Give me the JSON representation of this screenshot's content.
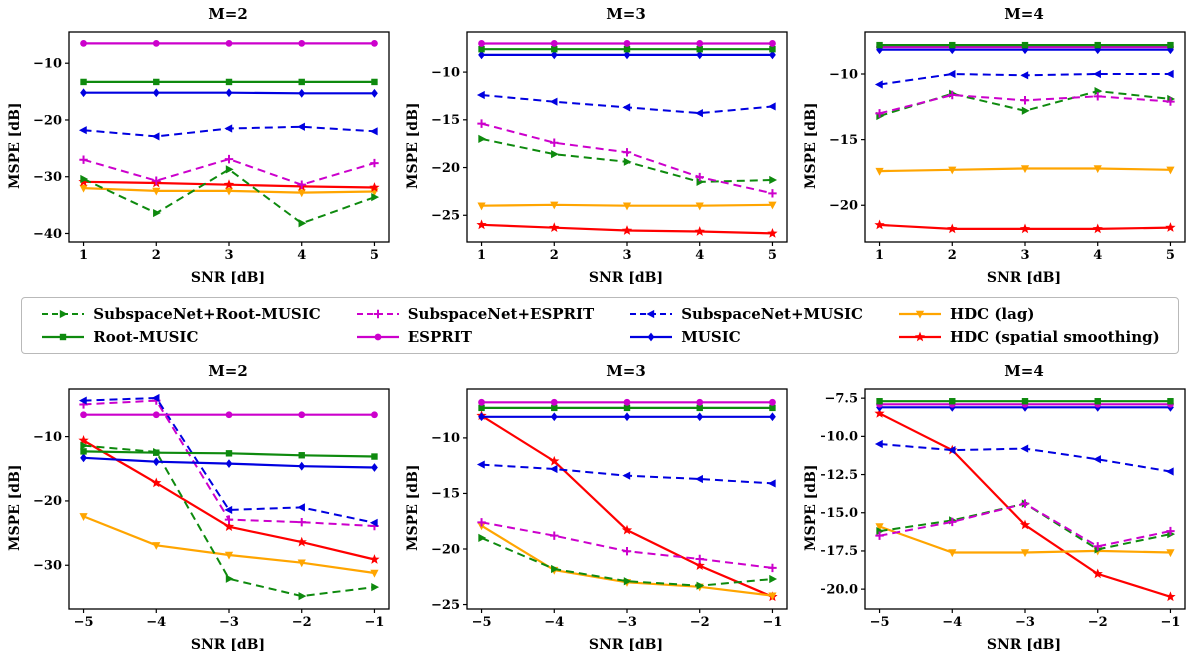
{
  "series_styles": {
    "ss_rm": {
      "color": "#0e8a0e",
      "dash": "8,5",
      "marker": "tri-right",
      "lw": 2
    },
    "rm": {
      "color": "#0e8a0e",
      "dash": "",
      "marker": "square",
      "lw": 2.2
    },
    "ss_esp": {
      "color": "#cc00cc",
      "dash": "8,5",
      "marker": "plus",
      "lw": 2
    },
    "esp": {
      "color": "#cc00cc",
      "dash": "",
      "marker": "circle",
      "lw": 2.2
    },
    "ss_mu": {
      "color": "#0000e0",
      "dash": "8,5",
      "marker": "tri-left",
      "lw": 2
    },
    "mu": {
      "color": "#0000e0",
      "dash": "",
      "marker": "diamond",
      "lw": 2.2
    },
    "hdc_lag": {
      "color": "#ffa500",
      "dash": "",
      "marker": "tri-down",
      "lw": 2.2
    },
    "hdc_ss": {
      "color": "#ff0000",
      "dash": "",
      "marker": "star",
      "lw": 2.2
    }
  },
  "legend": {
    "items": [
      {
        "label": "SubspaceNet+Root-MUSIC",
        "key": "ss_rm"
      },
      {
        "label": "SubspaceNet+ESPRIT",
        "key": "ss_esp"
      },
      {
        "label": "SubspaceNet+MUSIC",
        "key": "ss_mu"
      },
      {
        "label": "HDC (lag)",
        "key": "hdc_lag"
      },
      {
        "label": "Root-MUSIC",
        "key": "rm"
      },
      {
        "label": "ESPRIT",
        "key": "esp"
      },
      {
        "label": "MUSIC",
        "key": "mu"
      },
      {
        "label": "HDC (spatial smoothing)",
        "key": "hdc_ss"
      }
    ]
  },
  "chart_data": [
    {
      "type": "line",
      "title": "M=2",
      "xlabel": "SNR [dB]",
      "ylabel": "MSPE [dB]",
      "x": [
        1,
        2,
        3,
        4,
        5
      ],
      "xlim": [
        0.8,
        5.2
      ],
      "ylim": [
        -41.5,
        -4.5
      ],
      "xticks": [
        1,
        2,
        3,
        4,
        5
      ],
      "xtick_labels": [
        "1",
        "2",
        "3",
        "4",
        "5"
      ],
      "yticks": [
        -10,
        -20,
        -30,
        -40
      ],
      "ytick_labels": [
        "−10",
        "−20",
        "−30",
        "−40"
      ],
      "series": [
        {
          "name": "HDC (lag)",
          "key": "hdc_lag",
          "values": [
            -32.0,
            -32.5,
            -32.5,
            -32.8,
            -32.6
          ]
        },
        {
          "name": "HDC (spatial smoothing)",
          "key": "hdc_ss",
          "values": [
            -30.9,
            -31.1,
            -31.4,
            -31.7,
            -31.9
          ]
        },
        {
          "name": "SubspaceNet+Root-MUSIC",
          "key": "ss_rm",
          "values": [
            -30.4,
            -36.4,
            -28.7,
            -38.2,
            -33.6
          ]
        },
        {
          "name": "SubspaceNet+ESPRIT",
          "key": "ss_esp",
          "values": [
            -27.0,
            -30.7,
            -26.9,
            -31.4,
            -27.6
          ]
        },
        {
          "name": "SubspaceNet+MUSIC",
          "key": "ss_mu",
          "values": [
            -21.8,
            -22.9,
            -21.5,
            -21.2,
            -22.0
          ]
        },
        {
          "name": "MUSIC",
          "key": "mu",
          "values": [
            -15.2,
            -15.2,
            -15.2,
            -15.3,
            -15.3
          ]
        },
        {
          "name": "Root-MUSIC",
          "key": "rm",
          "values": [
            -13.3,
            -13.3,
            -13.3,
            -13.3,
            -13.3
          ]
        },
        {
          "name": "ESPRIT",
          "key": "esp",
          "values": [
            -6.5,
            -6.5,
            -6.5,
            -6.5,
            -6.5
          ]
        }
      ]
    },
    {
      "type": "line",
      "title": "M=3",
      "xlabel": "SNR [dB]",
      "ylabel": "MSPE [dB]",
      "x": [
        1,
        2,
        3,
        4,
        5
      ],
      "xlim": [
        0.8,
        5.2
      ],
      "ylim": [
        -27.8,
        -5.8
      ],
      "xticks": [
        1,
        2,
        3,
        4,
        5
      ],
      "xtick_labels": [
        "1",
        "2",
        "3",
        "4",
        "5"
      ],
      "yticks": [
        -10,
        -15,
        -20,
        -25
      ],
      "ytick_labels": [
        "−10",
        "−15",
        "−20",
        "−25"
      ],
      "series": [
        {
          "name": "HDC (spatial smoothing)",
          "key": "hdc_ss",
          "values": [
            -26.0,
            -26.3,
            -26.6,
            -26.7,
            -26.9
          ]
        },
        {
          "name": "HDC (lag)",
          "key": "hdc_lag",
          "values": [
            -24.0,
            -23.9,
            -24.0,
            -24.0,
            -23.9
          ]
        },
        {
          "name": "SubspaceNet+Root-MUSIC",
          "key": "ss_rm",
          "values": [
            -17.0,
            -18.6,
            -19.4,
            -21.5,
            -21.3
          ]
        },
        {
          "name": "SubspaceNet+ESPRIT",
          "key": "ss_esp",
          "values": [
            -15.4,
            -17.4,
            -18.4,
            -21.0,
            -22.7
          ]
        },
        {
          "name": "SubspaceNet+MUSIC",
          "key": "ss_mu",
          "values": [
            -12.4,
            -13.1,
            -13.7,
            -14.3,
            -13.6
          ]
        },
        {
          "name": "MUSIC",
          "key": "mu",
          "values": [
            -8.2,
            -8.2,
            -8.2,
            -8.2,
            -8.2
          ]
        },
        {
          "name": "Root-MUSIC",
          "key": "rm",
          "values": [
            -7.6,
            -7.6,
            -7.6,
            -7.6,
            -7.6
          ]
        },
        {
          "name": "ESPRIT",
          "key": "esp",
          "values": [
            -7.0,
            -7.0,
            -7.0,
            -7.0,
            -7.0
          ]
        }
      ]
    },
    {
      "type": "line",
      "title": "M=4",
      "xlabel": "SNR [dB]",
      "ylabel": "MSPE [dB]",
      "x": [
        1,
        2,
        3,
        4,
        5
      ],
      "xlim": [
        0.8,
        5.2
      ],
      "ylim": [
        -22.8,
        -6.8
      ],
      "xticks": [
        1,
        2,
        3,
        4,
        5
      ],
      "xtick_labels": [
        "1",
        "2",
        "3",
        "4",
        "5"
      ],
      "yticks": [
        -10,
        -15,
        -20
      ],
      "ytick_labels": [
        "−10",
        "−15",
        "−20"
      ],
      "series": [
        {
          "name": "HDC (spatial smoothing)",
          "key": "hdc_ss",
          "values": [
            -21.5,
            -21.8,
            -21.8,
            -21.8,
            -21.7
          ]
        },
        {
          "name": "HDC (lag)",
          "key": "hdc_lag",
          "values": [
            -17.4,
            -17.3,
            -17.2,
            -17.2,
            -17.3
          ]
        },
        {
          "name": "SubspaceNet+Root-MUSIC",
          "key": "ss_rm",
          "values": [
            -13.2,
            -11.5,
            -12.8,
            -11.3,
            -11.9
          ]
        },
        {
          "name": "SubspaceNet+ESPRIT",
          "key": "ss_esp",
          "values": [
            -13.0,
            -11.6,
            -12.0,
            -11.7,
            -12.1
          ]
        },
        {
          "name": "SubspaceNet+MUSIC",
          "key": "ss_mu",
          "values": [
            -10.8,
            -10.0,
            -10.1,
            -10.0,
            -10.0
          ]
        },
        {
          "name": "ESPRIT",
          "key": "esp",
          "values": [
            -7.95,
            -7.95,
            -7.95,
            -7.95,
            -7.95
          ]
        },
        {
          "name": "MUSIC",
          "key": "mu",
          "values": [
            -8.15,
            -8.15,
            -8.15,
            -8.15,
            -8.15
          ]
        },
        {
          "name": "Root-MUSIC",
          "key": "rm",
          "values": [
            -7.8,
            -7.8,
            -7.8,
            -7.8,
            -7.8
          ]
        }
      ]
    },
    {
      "type": "line",
      "title": "M=2",
      "xlabel": "SNR [dB]",
      "ylabel": "MSPE [dB]",
      "x": [
        -5,
        -4,
        -3,
        -2,
        -1
      ],
      "xlim": [
        -5.2,
        -0.8
      ],
      "ylim": [
        -36.8,
        -2.6
      ],
      "xticks": [
        -5,
        -4,
        -3,
        -2,
        -1
      ],
      "xtick_labels": [
        "−5",
        "−4",
        "−3",
        "−2",
        "−1"
      ],
      "yticks": [
        -10,
        -20,
        -30
      ],
      "ytick_labels": [
        "−10",
        "−20",
        "−30"
      ],
      "series": [
        {
          "name": "HDC (lag)",
          "key": "hdc_lag",
          "values": [
            -22.4,
            -26.9,
            -28.4,
            -29.6,
            -31.2
          ]
        },
        {
          "name": "HDC (spatial smoothing)",
          "key": "hdc_ss",
          "values": [
            -10.6,
            -17.2,
            -24.0,
            -26.4,
            -29.1
          ]
        },
        {
          "name": "SubspaceNet+Root-MUSIC",
          "key": "ss_rm",
          "values": [
            -11.4,
            -12.4,
            -32.1,
            -34.8,
            -33.4
          ]
        },
        {
          "name": "SubspaceNet+ESPRIT",
          "key": "ss_esp",
          "values": [
            -5.0,
            -4.4,
            -22.9,
            -23.3,
            -23.9
          ]
        },
        {
          "name": "SubspaceNet+MUSIC",
          "key": "ss_mu",
          "values": [
            -4.4,
            -4.0,
            -21.4,
            -21.0,
            -23.4
          ]
        },
        {
          "name": "MUSIC",
          "key": "mu",
          "values": [
            -13.3,
            -13.9,
            -14.2,
            -14.6,
            -14.8
          ]
        },
        {
          "name": "Root-MUSIC",
          "key": "rm",
          "values": [
            -12.3,
            -12.5,
            -12.6,
            -12.9,
            -13.1
          ]
        },
        {
          "name": "ESPRIT",
          "key": "esp",
          "values": [
            -6.6,
            -6.6,
            -6.6,
            -6.6,
            -6.6
          ]
        }
      ]
    },
    {
      "type": "line",
      "title": "M=3",
      "xlabel": "SNR [dB]",
      "ylabel": "MSPE [dB]",
      "x": [
        -5,
        -4,
        -3,
        -2,
        -1
      ],
      "xlim": [
        -5.2,
        -0.8
      ],
      "ylim": [
        -25.4,
        -5.6
      ],
      "xticks": [
        -5,
        -4,
        -3,
        -2,
        -1
      ],
      "xtick_labels": [
        "−5",
        "−4",
        "−3",
        "−2",
        "−1"
      ],
      "yticks": [
        -10,
        -15,
        -20,
        -25
      ],
      "ytick_labels": [
        "−10",
        "−15",
        "−20",
        "−25"
      ],
      "series": [
        {
          "name": "HDC (spatial smoothing)",
          "key": "hdc_ss",
          "values": [
            -8.0,
            -12.1,
            -18.3,
            -21.5,
            -24.3
          ]
        },
        {
          "name": "HDC (lag)",
          "key": "hdc_lag",
          "values": [
            -17.9,
            -21.9,
            -23.0,
            -23.4,
            -24.2
          ]
        },
        {
          "name": "SubspaceNet+Root-MUSIC",
          "key": "ss_rm",
          "values": [
            -19.0,
            -21.8,
            -22.9,
            -23.3,
            -22.7
          ]
        },
        {
          "name": "SubspaceNet+ESPRIT",
          "key": "ss_esp",
          "values": [
            -17.6,
            -18.8,
            -20.2,
            -20.9,
            -21.7
          ]
        },
        {
          "name": "SubspaceNet+MUSIC",
          "key": "ss_mu",
          "values": [
            -12.4,
            -12.8,
            -13.4,
            -13.7,
            -14.1
          ]
        },
        {
          "name": "MUSIC",
          "key": "mu",
          "values": [
            -8.1,
            -8.1,
            -8.1,
            -8.1,
            -8.1
          ]
        },
        {
          "name": "Root-MUSIC",
          "key": "rm",
          "values": [
            -7.3,
            -7.3,
            -7.3,
            -7.3,
            -7.3
          ]
        },
        {
          "name": "ESPRIT",
          "key": "esp",
          "values": [
            -6.8,
            -6.8,
            -6.8,
            -6.8,
            -6.8
          ]
        }
      ]
    },
    {
      "type": "line",
      "title": "M=4",
      "xlabel": "SNR [dB]",
      "ylabel": "MSPE [dB]",
      "x": [
        -5,
        -4,
        -3,
        -2,
        -1
      ],
      "xlim": [
        -5.2,
        -0.8
      ],
      "ylim": [
        -21.3,
        -6.9
      ],
      "xticks": [
        -5,
        -4,
        -3,
        -2,
        -1
      ],
      "xtick_labels": [
        "−5",
        "−4",
        "−3",
        "−2",
        "−1"
      ],
      "yticks": [
        -7.5,
        -10,
        -12.5,
        -15,
        -17.5,
        -20
      ],
      "ytick_labels": [
        "−7.5",
        "−10.0",
        "−12.5",
        "−15.0",
        "−17.5",
        "−20.0"
      ],
      "series": [
        {
          "name": "HDC (spatial smoothing)",
          "key": "hdc_ss",
          "values": [
            -8.5,
            -10.9,
            -15.8,
            -19.0,
            -20.5
          ]
        },
        {
          "name": "HDC (lag)",
          "key": "hdc_lag",
          "values": [
            -15.9,
            -17.6,
            -17.6,
            -17.5,
            -17.6
          ]
        },
        {
          "name": "SubspaceNet+Root-MUSIC",
          "key": "ss_rm",
          "values": [
            -16.2,
            -15.5,
            -14.4,
            -17.4,
            -16.4
          ]
        },
        {
          "name": "SubspaceNet+ESPRIT",
          "key": "ss_esp",
          "values": [
            -16.5,
            -15.6,
            -14.4,
            -17.2,
            -16.2
          ]
        },
        {
          "name": "SubspaceNet+MUSIC",
          "key": "ss_mu",
          "values": [
            -10.5,
            -10.9,
            -10.8,
            -11.5,
            -12.3
          ]
        },
        {
          "name": "MUSIC",
          "key": "mu",
          "values": [
            -8.1,
            -8.1,
            -8.1,
            -8.1,
            -8.1
          ]
        },
        {
          "name": "ESPRIT",
          "key": "esp",
          "values": [
            -7.9,
            -7.9,
            -7.9,
            -7.9,
            -7.9
          ]
        },
        {
          "name": "Root-MUSIC",
          "key": "rm",
          "values": [
            -7.7,
            -7.7,
            -7.7,
            -7.7,
            -7.7
          ]
        }
      ]
    }
  ]
}
